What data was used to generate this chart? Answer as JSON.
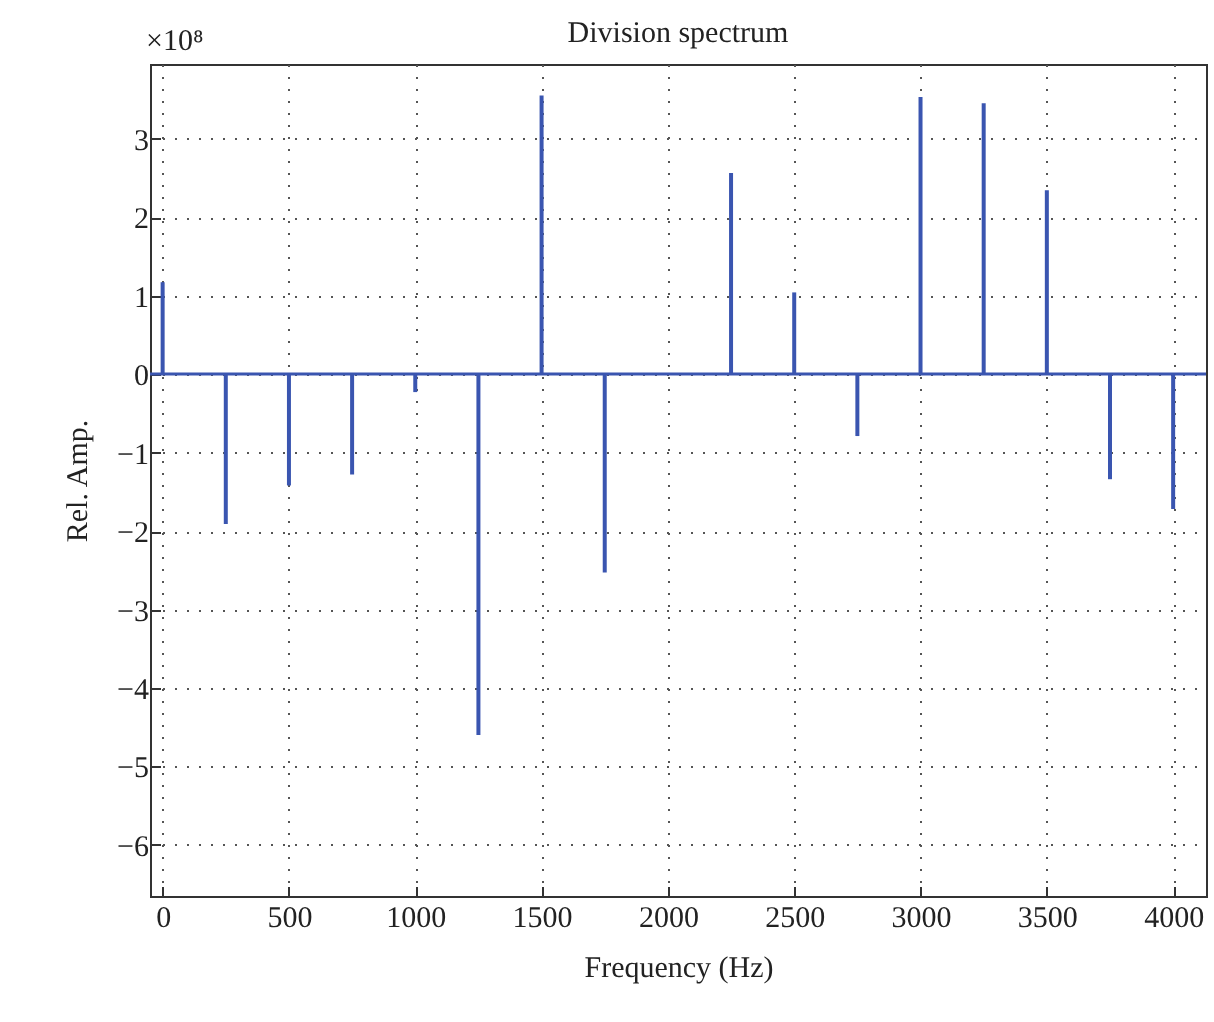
{
  "chart_data": {
    "type": "bar",
    "title": "Division spectrum",
    "xlabel": "Frequency (Hz)",
    "ylabel": "Rel. Amp.",
    "annotations": [
      "×10⁸"
    ],
    "x": [
      0,
      250,
      500,
      750,
      1000,
      1250,
      1500,
      1750,
      2000,
      2250,
      2500,
      2750,
      3000,
      3250,
      3500,
      3750,
      4000
    ],
    "series": [
      {
        "color": "#3a55b0",
        "values": [
          1.17,
          -1.91,
          -1.42,
          -1.28,
          -0.23,
          -4.6,
          3.55,
          -2.53,
          0,
          2.56,
          1.04,
          -0.79,
          3.53,
          3.45,
          2.34,
          -1.34,
          -1.72
        ]
      }
    ],
    "xlim": [
      -50,
      4130
    ],
    "xticks": [
      0,
      500,
      1000,
      1500,
      2000,
      2500,
      3000,
      3500,
      4000
    ],
    "ylim": [
      -6.65,
      3.95
    ],
    "yticks": [
      -6,
      -5,
      -4,
      -3,
      -2,
      -1,
      0,
      1,
      2,
      3
    ],
    "ref_lines": [
      {
        "axis": "y",
        "value": 0,
        "color": "#3a55b0"
      }
    ],
    "grid": true
  }
}
